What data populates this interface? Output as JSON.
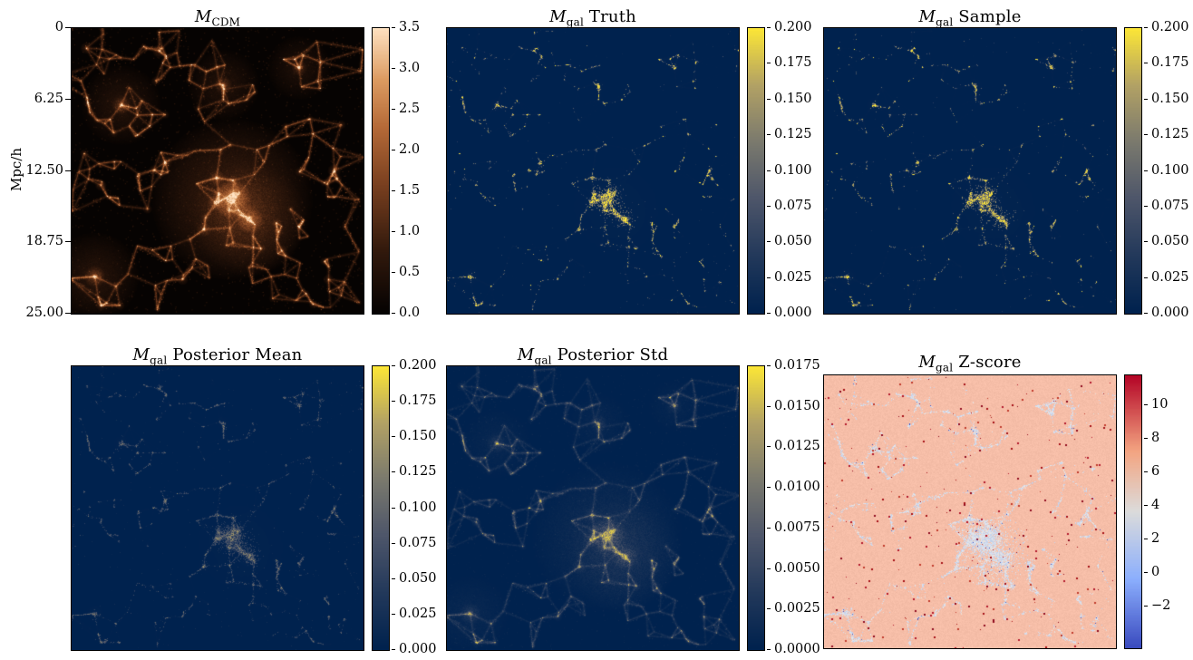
{
  "figure": {
    "ylabel": "Mpc/h",
    "y_ticks": [
      "0",
      "6.25",
      "12.50",
      "18.75",
      "25.00"
    ]
  },
  "panels": [
    {
      "id": "mcdm",
      "title_var": "M",
      "title_sub": "CDM",
      "title_rest": "",
      "colormap": "black-copper-peach heat map",
      "cbar_labels": [
        "3.5",
        "3.0",
        "2.5",
        "2.0",
        "1.5",
        "1.0",
        "0.5",
        "0.0"
      ],
      "tick_values": [
        3.5,
        3.0,
        2.5,
        2.0,
        1.5,
        1.0,
        0.5,
        0.0
      ],
      "cbar_range": [
        0,
        3.5
      ]
    },
    {
      "id": "truth",
      "title_var": "M",
      "title_sub": "gal",
      "title_rest": " Truth",
      "colormap": "cividis (dark blue to yellow)",
      "cbar_labels": [
        "0.200",
        "0.175",
        "0.150",
        "0.125",
        "0.100",
        "0.075",
        "0.050",
        "0.025",
        "0.000"
      ],
      "tick_values": [
        0.2,
        0.175,
        0.15,
        0.125,
        0.1,
        0.075,
        0.05,
        0.025,
        0
      ],
      "cbar_range": [
        0,
        0.2
      ]
    },
    {
      "id": "sample",
      "title_var": "M",
      "title_sub": "gal",
      "title_rest": " Sample",
      "colormap": "cividis (dark blue to yellow)",
      "cbar_labels": [
        "0.200",
        "0.175",
        "0.150",
        "0.125",
        "0.100",
        "0.075",
        "0.050",
        "0.025",
        "0.000"
      ],
      "tick_values": [
        0.2,
        0.175,
        0.15,
        0.125,
        0.1,
        0.075,
        0.05,
        0.025,
        0
      ],
      "cbar_range": [
        0,
        0.2
      ]
    },
    {
      "id": "postmean",
      "title_var": "M",
      "title_sub": "gal",
      "title_rest": " Posterior Mean",
      "colormap": "cividis (dark blue to yellow)",
      "cbar_labels": [
        "0.200",
        "0.175",
        "0.150",
        "0.125",
        "0.100",
        "0.075",
        "0.050",
        "0.025",
        "0.000"
      ],
      "tick_values": [
        0.2,
        0.175,
        0.15,
        0.125,
        0.1,
        0.075,
        0.05,
        0.025,
        0
      ],
      "cbar_range": [
        0,
        0.2
      ]
    },
    {
      "id": "poststd",
      "title_var": "M",
      "title_sub": "gal",
      "title_rest": " Posterior Std",
      "colormap": "cividis (dark blue to yellow)",
      "cbar_labels": [
        "0.0175",
        "0.0150",
        "0.0125",
        "0.0100",
        "0.0075",
        "0.0050",
        "0.0025",
        "0.0000"
      ],
      "tick_values": [
        0.0175,
        0.015,
        0.0125,
        0.01,
        0.0075,
        0.005,
        0.0025,
        0
      ],
      "cbar_range": [
        0,
        0.0175
      ]
    },
    {
      "id": "zscore",
      "title_var": "M",
      "title_sub": "gal",
      "title_rest": " Z-score",
      "colormap": "coolwarm (blue-white-red)",
      "cbar_labels": [
        "10",
        "8",
        "6",
        "4",
        "2",
        "0",
        "−2"
      ],
      "tick_values": [
        10,
        8,
        6,
        4,
        2,
        0,
        -2
      ],
      "cbar_range": [
        -4.5,
        11.8
      ]
    }
  ],
  "chart_data": [
    {
      "type": "heatmap",
      "title": "M_CDM",
      "ylabel": "Mpc/h",
      "x_range_mpc_h": [
        0,
        25
      ],
      "y_range_mpc_h": [
        0,
        25
      ],
      "y_ticks": [
        0,
        6.25,
        12.5,
        18.75,
        25.0
      ],
      "colormap": "black to copper-orange to peach",
      "value_range": [
        0,
        3.5
      ],
      "colorbar_ticks": [
        0.0,
        0.5,
        1.0,
        1.5,
        2.0,
        2.5,
        3.0,
        3.5
      ],
      "legend_position": "right colorbar",
      "grid": false,
      "description": "Projected cold dark matter mass of a 25 Mpc/h simulation slice: cosmic web of orange filaments and bright halos on a near-black background; largest bright cluster just right of centre at ~15 Mpc depth, secondary bright halos near upper-left (~6 Mpc), top-centre, and the lower-left corner."
    },
    {
      "type": "heatmap",
      "title": "M_gal Truth",
      "x_range_mpc_h": [
        0,
        25
      ],
      "y_range_mpc_h": [
        0,
        25
      ],
      "colormap": "cividis",
      "value_range": [
        0,
        0.2
      ],
      "colorbar_ticks": [
        0.0,
        0.025,
        0.05,
        0.075,
        0.1,
        0.125,
        0.15,
        0.175,
        0.2
      ],
      "legend_position": "right colorbar",
      "grid": false,
      "description": "True galaxy mass map: nearly uniform dark navy background with sparse point-like galaxy speckles tracing the same web; dense yellow speckled clump at the central cluster and a smaller clump at the lower-left corner."
    },
    {
      "type": "heatmap",
      "title": "M_gal Sample",
      "x_range_mpc_h": [
        0,
        25
      ],
      "y_range_mpc_h": [
        0,
        25
      ],
      "colormap": "cividis",
      "value_range": [
        0,
        0.2
      ],
      "colorbar_ticks": [
        0.0,
        0.025,
        0.05,
        0.075,
        0.1,
        0.125,
        0.15,
        0.175,
        0.2
      ],
      "legend_position": "right colorbar",
      "grid": false,
      "description": "A posterior sample of the galaxy mass map; statistically very similar to the truth panel: sparse speckles with a bright clustered clump near centre and lower-left."
    },
    {
      "type": "heatmap",
      "title": "M_gal Posterior Mean",
      "x_range_mpc_h": [
        0,
        25
      ],
      "y_range_mpc_h": [
        0,
        25
      ],
      "colormap": "cividis",
      "value_range": [
        0,
        0.2
      ],
      "colorbar_ticks": [
        0.0,
        0.025,
        0.05,
        0.075,
        0.1,
        0.125,
        0.15,
        0.175,
        0.2
      ],
      "legend_position": "right colorbar",
      "grid": false,
      "description": "Posterior mean galaxy mass map: dimmer, denser and smoother speckles than a single sample, again concentrated at the central cluster and along filaments."
    },
    {
      "type": "heatmap",
      "title": "M_gal Posterior Std",
      "x_range_mpc_h": [
        0,
        25
      ],
      "y_range_mpc_h": [
        0,
        25
      ],
      "colormap": "cividis",
      "value_range": [
        0,
        0.0175
      ],
      "colorbar_ticks": [
        0.0,
        0.0025,
        0.005,
        0.0075,
        0.01,
        0.0125,
        0.015,
        0.0175
      ],
      "legend_position": "right colorbar",
      "grid": false,
      "description": "Posterior standard deviation: the cosmic web is clearly visible in grey-blue with the highest uncertainty (bright yellow blobs) at the massive central cluster and other halos."
    },
    {
      "type": "heatmap",
      "title": "M_gal Z-score",
      "x_range_mpc_h": [
        0,
        25
      ],
      "y_range_mpc_h": [
        0,
        25
      ],
      "colormap": "coolwarm",
      "value_range": [
        -4.5,
        11.8
      ],
      "colorbar_ticks": [
        -2,
        0,
        2,
        4,
        6,
        8,
        10
      ],
      "legend_position": "right colorbar",
      "grid": false,
      "description": "Z-score map: pale salmon background (z ≈ 2–3) with pale blue-grey mottled regions of near-zero z along the cosmic web, and many scattered dark-red outlier pixels (z ≳ 8) across the field."
    }
  ]
}
